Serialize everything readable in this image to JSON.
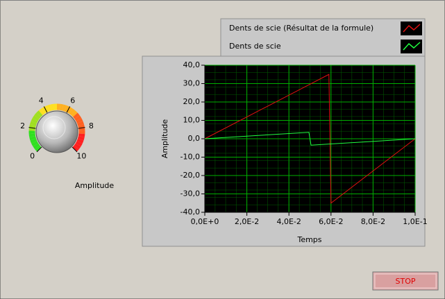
{
  "chart_data": {
    "type": "line",
    "xlabel": "Temps",
    "ylabel": "Amplitude",
    "series": [
      {
        "name": "Dents de scie (Résultat de la formule)",
        "color": "#e01010",
        "x": [
          0,
          0.059,
          0.06,
          0.1
        ],
        "values": [
          0,
          35,
          -35,
          0
        ]
      },
      {
        "name": "Dents de scie",
        "color": "#20ff40",
        "x": [
          0,
          0.0495,
          0.0505,
          0.1
        ],
        "values": [
          0,
          3.5,
          -3.5,
          0
        ]
      }
    ],
    "xlim": [
      0,
      0.1
    ],
    "xticks": [
      {
        "value": 0,
        "label": "0,0E+0"
      },
      {
        "value": 0.02,
        "label": "2,0E-2"
      },
      {
        "value": 0.04,
        "label": "4,0E-2"
      },
      {
        "value": 0.06,
        "label": "6,0E-2"
      },
      {
        "value": 0.08,
        "label": "8,0E-2"
      },
      {
        "value": 0.1,
        "label": "1,0E-1"
      }
    ],
    "ylim": [
      -40,
      40
    ],
    "yticks": [
      {
        "value": -40,
        "label": "-40,0"
      },
      {
        "value": -30,
        "label": "-30,0"
      },
      {
        "value": -20,
        "label": "-20,0"
      },
      {
        "value": -10,
        "label": "-10,0"
      },
      {
        "value": 0,
        "label": "0,0"
      },
      {
        "value": 10,
        "label": "10,0"
      },
      {
        "value": 20,
        "label": "20,0"
      },
      {
        "value": 30,
        "label": "30,0"
      },
      {
        "value": 40,
        "label": "40,0"
      }
    ],
    "grid": true,
    "grid_color": "#00b000",
    "plot_background": "#000000"
  },
  "knob": {
    "label": "Amplitude",
    "ticks": [
      0,
      2,
      4,
      6,
      8,
      10
    ],
    "range": [
      0,
      10
    ]
  },
  "button": {
    "label": "STOP"
  }
}
